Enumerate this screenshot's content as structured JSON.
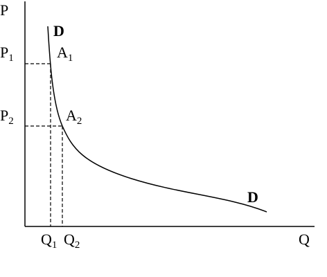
{
  "axes": {
    "y_label": "P",
    "x_label": "Q"
  },
  "price_levels": [
    {
      "label": "P",
      "sub": "1"
    },
    {
      "label": "P",
      "sub": "2"
    }
  ],
  "points": [
    {
      "label": "A",
      "sub": "1"
    },
    {
      "label": "A",
      "sub": "2"
    }
  ],
  "quantities": [
    {
      "label": "Q",
      "sub": "1"
    },
    {
      "label": "Q",
      "sub": "2"
    }
  ],
  "curve_labels": [
    "D",
    "D"
  ]
}
